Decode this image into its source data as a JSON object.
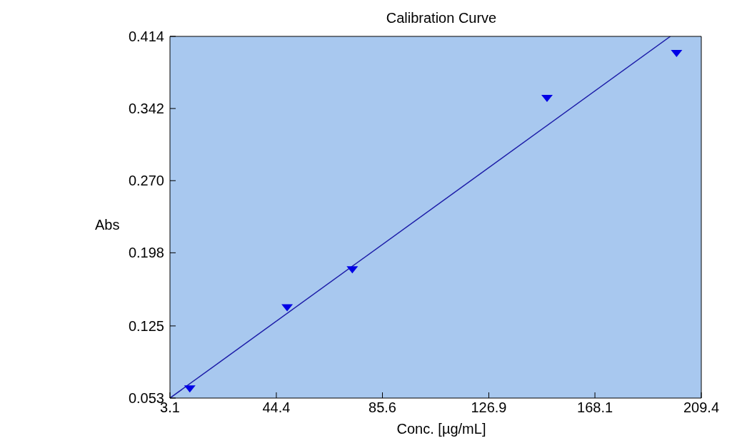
{
  "chart_data": {
    "type": "scatter",
    "title": "Calibration Curve",
    "xlabel": "Conc. [µg/mL]",
    "ylabel": "Abs",
    "xlim": [
      3.1,
      209.4
    ],
    "xticks": [
      3.1,
      44.4,
      85.6,
      126.9,
      168.1,
      209.4
    ],
    "ylim": [
      0.053,
      0.414
    ],
    "yticks": [
      0.053,
      0.125,
      0.198,
      {
        "value": 0.27,
        "label": "0.270"
      },
      0.342,
      0.414
    ],
    "grid": false,
    "legend": false,
    "series": [
      {
        "marker": "triangle",
        "color": "#0000e6",
        "x": [
          10.8,
          48.6,
          73.9,
          149.5,
          199.8
        ],
        "values": [
          0.062,
          0.143,
          0.181,
          0.352,
          0.397
        ]
      },
      {
        "type": "line",
        "color": "#1c1ca8",
        "x": [
          3.1,
          197.4
        ],
        "values": [
          0.053,
          0.414
        ]
      }
    ]
  }
}
